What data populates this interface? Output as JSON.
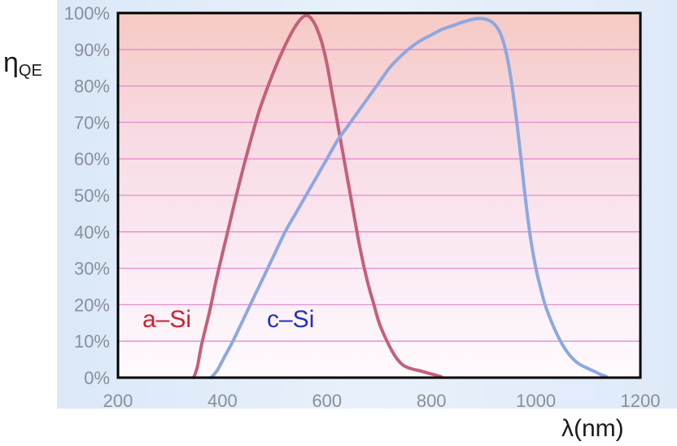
{
  "chart_data": {
    "type": "line",
    "title": "",
    "ylabel_main": "η",
    "ylabel_sub": "QE",
    "xlabel": "λ(nm)",
    "xlim": [
      200,
      1200
    ],
    "ylim": [
      0,
      100
    ],
    "xticks": [
      200,
      400,
      600,
      800,
      1000,
      1200
    ],
    "xtick_labels": [
      "200",
      "400",
      "600",
      "800",
      "1000",
      "1200"
    ],
    "yticks": [
      0,
      10,
      20,
      30,
      40,
      50,
      60,
      70,
      80,
      90,
      100
    ],
    "ytick_labels": [
      "0%",
      "10%",
      "20%",
      "30%",
      "40%",
      "50%",
      "60%",
      "70%",
      "80%",
      "90%",
      "100%"
    ],
    "grid": "horizontal",
    "colors": {
      "a_si": "#c4607a",
      "c_si": "#8da8e0",
      "a_si_label": "#cc2233",
      "c_si_label": "#2233bb",
      "grid": "#e58ccc",
      "frame": "#000000",
      "outer_bg": "#e4eefa"
    },
    "series": [
      {
        "name": "a–Si",
        "points": [
          [
            345,
            0
          ],
          [
            352,
            3
          ],
          [
            360,
            9
          ],
          [
            375,
            18
          ],
          [
            390,
            28
          ],
          [
            410,
            40
          ],
          [
            430,
            52
          ],
          [
            450,
            63
          ],
          [
            470,
            73
          ],
          [
            490,
            81
          ],
          [
            510,
            88
          ],
          [
            530,
            94
          ],
          [
            545,
            97.5
          ],
          [
            555,
            99
          ],
          [
            562,
            99.3
          ],
          [
            570,
            98.5
          ],
          [
            580,
            96
          ],
          [
            590,
            92
          ],
          [
            600,
            86
          ],
          [
            610,
            78
          ],
          [
            620,
            70
          ],
          [
            630,
            62
          ],
          [
            640,
            54
          ],
          [
            650,
            46
          ],
          [
            660,
            38
          ],
          [
            670,
            31
          ],
          [
            680,
            25
          ],
          [
            690,
            20
          ],
          [
            700,
            15
          ],
          [
            715,
            10
          ],
          [
            730,
            6
          ],
          [
            745,
            3.5
          ],
          [
            760,
            2.5
          ],
          [
            780,
            1.8
          ],
          [
            800,
            1
          ],
          [
            818,
            0.3
          ]
        ]
      },
      {
        "name": "c–Si",
        "points": [
          [
            378,
            0
          ],
          [
            390,
            2
          ],
          [
            405,
            6
          ],
          [
            420,
            10
          ],
          [
            440,
            16
          ],
          [
            460,
            22
          ],
          [
            480,
            28
          ],
          [
            500,
            34
          ],
          [
            520,
            40
          ],
          [
            540,
            45
          ],
          [
            560,
            50
          ],
          [
            580,
            55
          ],
          [
            600,
            60
          ],
          [
            620,
            65
          ],
          [
            640,
            69
          ],
          [
            660,
            73
          ],
          [
            680,
            77
          ],
          [
            700,
            81
          ],
          [
            720,
            85
          ],
          [
            740,
            88
          ],
          [
            760,
            90.5
          ],
          [
            780,
            92.5
          ],
          [
            800,
            94
          ],
          [
            820,
            95.5
          ],
          [
            840,
            96.5
          ],
          [
            860,
            97.5
          ],
          [
            880,
            98.3
          ],
          [
            895,
            98.5
          ],
          [
            910,
            98
          ],
          [
            920,
            97
          ],
          [
            930,
            95
          ],
          [
            940,
            91
          ],
          [
            950,
            84
          ],
          [
            960,
            74
          ],
          [
            970,
            62
          ],
          [
            980,
            49
          ],
          [
            990,
            38
          ],
          [
            1000,
            30
          ],
          [
            1010,
            24
          ],
          [
            1020,
            19
          ],
          [
            1040,
            12
          ],
          [
            1060,
            7
          ],
          [
            1080,
            4
          ],
          [
            1100,
            2.5
          ],
          [
            1115,
            1.5
          ],
          [
            1125,
            0.8
          ],
          [
            1135,
            0.3
          ]
        ]
      }
    ],
    "annotations": [
      {
        "text": "a–Si",
        "series": "a–Si"
      },
      {
        "text": "c–Si",
        "series": "c–Si"
      }
    ]
  }
}
